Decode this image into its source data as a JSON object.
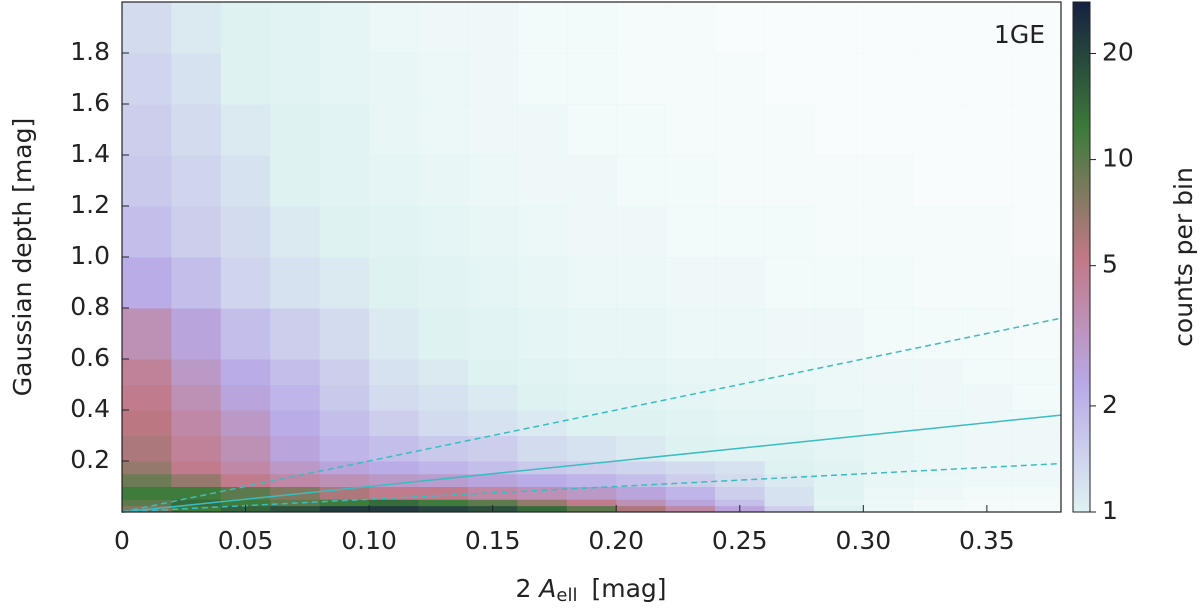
{
  "chart_data": {
    "type": "hist2d",
    "annotation": "1GE",
    "x_label_parts": [
      "2",
      "A",
      "ell",
      "[mag]"
    ],
    "y_label": "Gaussian depth  [mag]",
    "colorbar_label": "counts per bin",
    "xlim": [
      0,
      0.38
    ],
    "ylim": [
      0,
      2.0
    ],
    "xticks": [
      0,
      0.05,
      {
        "value": 0.1,
        "label": "0.10"
      },
      0.15,
      {
        "value": 0.2,
        "label": "0.20"
      },
      0.25,
      {
        "value": 0.3,
        "label": "0.30"
      },
      0.35
    ],
    "yticks": [
      0.2,
      0.4,
      0.6,
      0.8,
      {
        "value": 1,
        "label": "1.0"
      },
      1.2,
      1.4,
      1.6,
      1.8
    ],
    "clim": [
      1,
      28
    ],
    "cticks": [
      1,
      2,
      5,
      10,
      20
    ],
    "clog": true,
    "colormap": [
      "#dff2f2",
      "#b8a9e6",
      "#c17886",
      "#3d7b3a",
      "#162040"
    ],
    "xbins": [
      0,
      0.02,
      0.04,
      0.06,
      0.08,
      0.1,
      0.12,
      0.14,
      0.16,
      0.18,
      0.2,
      0.22,
      0.24,
      0.26,
      0.28,
      0.3,
      0.32,
      0.34,
      0.36,
      0.38
    ],
    "ybins": [
      0,
      0.025,
      0.05,
      0.1,
      0.15,
      0.2,
      0.3,
      0.4,
      0.5,
      0.6,
      0.8,
      1.0,
      1.2,
      1.4,
      1.6,
      1.8,
      2.0
    ],
    "counts": [
      [
        8,
        12,
        15,
        18,
        22,
        22,
        20,
        18,
        14,
        10,
        6,
        4,
        2.5,
        1.5,
        1,
        0.6,
        0.4,
        0.3,
        0.3
      ],
      [
        10,
        14,
        12,
        10,
        12,
        14,
        12,
        10,
        7,
        5,
        3.5,
        2.5,
        1.8,
        1.2,
        0.8,
        0.5,
        0.4,
        0.3,
        0.3
      ],
      [
        12,
        12,
        10,
        8,
        6,
        5,
        5,
        4,
        3.5,
        3,
        2.5,
        2,
        1.5,
        1.2,
        0.9,
        0.6,
        0.5,
        0.4,
        0.4
      ],
      [
        9,
        7,
        5,
        4,
        3.5,
        3,
        2.8,
        2.5,
        2.2,
        2,
        1.8,
        1.5,
        1.3,
        1.1,
        0.9,
        0.7,
        0.6,
        0.5,
        0.5
      ],
      [
        7,
        5,
        4,
        3,
        2.5,
        2.2,
        2,
        1.8,
        1.6,
        1.5,
        1.4,
        1.3,
        1.2,
        1,
        0.9,
        0.7,
        0.6,
        0.5,
        0.5
      ],
      [
        6,
        4.5,
        3.5,
        2.5,
        2,
        1.8,
        1.6,
        1.5,
        1.3,
        1.2,
        1.1,
        1,
        0.9,
        0.9,
        0.8,
        0.7,
        0.6,
        0.5,
        0.5
      ],
      [
        5.5,
        4,
        3,
        2.2,
        1.8,
        1.5,
        1.3,
        1.2,
        1.1,
        1,
        1,
        0.9,
        0.8,
        0.8,
        0.7,
        0.6,
        0.6,
        0.5,
        0.5
      ],
      [
        5,
        3.5,
        2.5,
        2,
        1.6,
        1.3,
        1.2,
        1.1,
        1,
        0.9,
        0.9,
        0.8,
        0.7,
        0.7,
        0.6,
        0.6,
        0.5,
        0.5,
        0.4
      ],
      [
        4.5,
        3,
        2.2,
        1.8,
        1.5,
        1.2,
        1.1,
        1,
        0.9,
        0.8,
        0.8,
        0.7,
        0.7,
        0.6,
        0.6,
        0.5,
        0.5,
        0.4,
        0.4
      ],
      [
        3.5,
        2.5,
        1.8,
        1.5,
        1.3,
        1.1,
        1,
        0.9,
        0.8,
        0.7,
        0.7,
        0.6,
        0.6,
        0.5,
        0.5,
        0.4,
        0.4,
        0.4,
        0.3
      ],
      [
        2.2,
        1.8,
        1.4,
        1.2,
        1.1,
        1,
        0.9,
        0.8,
        0.7,
        0.6,
        0.6,
        0.5,
        0.5,
        0.4,
        0.4,
        0.4,
        0.3,
        0.3,
        0.3
      ],
      [
        1.8,
        1.5,
        1.3,
        1.1,
        1,
        0.9,
        0.8,
        0.7,
        0.6,
        0.5,
        0.5,
        0.4,
        0.4,
        0.4,
        0.3,
        0.3,
        0.3,
        0.3,
        0.2
      ],
      [
        1.6,
        1.4,
        1.2,
        1,
        0.9,
        0.8,
        0.7,
        0.6,
        0.5,
        0.5,
        0.4,
        0.4,
        0.3,
        0.3,
        0.3,
        0.3,
        0.2,
        0.2,
        0.2
      ],
      [
        1.5,
        1.3,
        1.1,
        1,
        0.9,
        0.7,
        0.6,
        0.5,
        0.5,
        0.4,
        0.4,
        0.3,
        0.3,
        0.3,
        0.2,
        0.2,
        0.2,
        0.2,
        0.2
      ],
      [
        1.4,
        1.2,
        1,
        0.9,
        0.8,
        0.7,
        0.6,
        0.5,
        0.4,
        0.4,
        0.3,
        0.3,
        0.3,
        0.2,
        0.2,
        0.2,
        0.2,
        0.2,
        0.2
      ],
      [
        1.3,
        1.1,
        1,
        0.9,
        0.8,
        0.6,
        0.5,
        0.5,
        0.4,
        0.4,
        0.3,
        0.3,
        0.2,
        0.2,
        0.2,
        0.2,
        0.2,
        0.2,
        0.2
      ]
    ],
    "lines": [
      {
        "x": [
          0,
          0.38
        ],
        "y": [
          0,
          0.38
        ],
        "color": "#3bbcc0",
        "dash": false
      },
      {
        "x": [
          0,
          0.38
        ],
        "y": [
          0,
          0.76
        ],
        "color": "#3bbcc0",
        "dash": true
      },
      {
        "x": [
          0,
          0.38
        ],
        "y": [
          0,
          0.19
        ],
        "color": "#3bbcc0",
        "dash": true
      }
    ]
  }
}
